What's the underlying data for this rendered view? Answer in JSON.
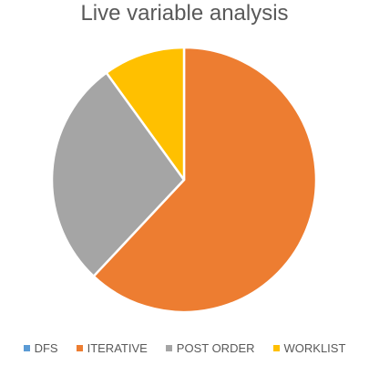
{
  "chart_data": {
    "type": "pie",
    "title": "Live variable analysis",
    "categories": [
      "DFS",
      "ITERATIVE",
      "POST ORDER",
      "WORKLIST"
    ],
    "values": [
      0,
      62,
      28,
      10
    ],
    "colors": [
      "#5b9bd5",
      "#ed7d31",
      "#a5a5a5",
      "#ffc000"
    ],
    "start_angle_deg": 0,
    "legend_position": "bottom"
  }
}
